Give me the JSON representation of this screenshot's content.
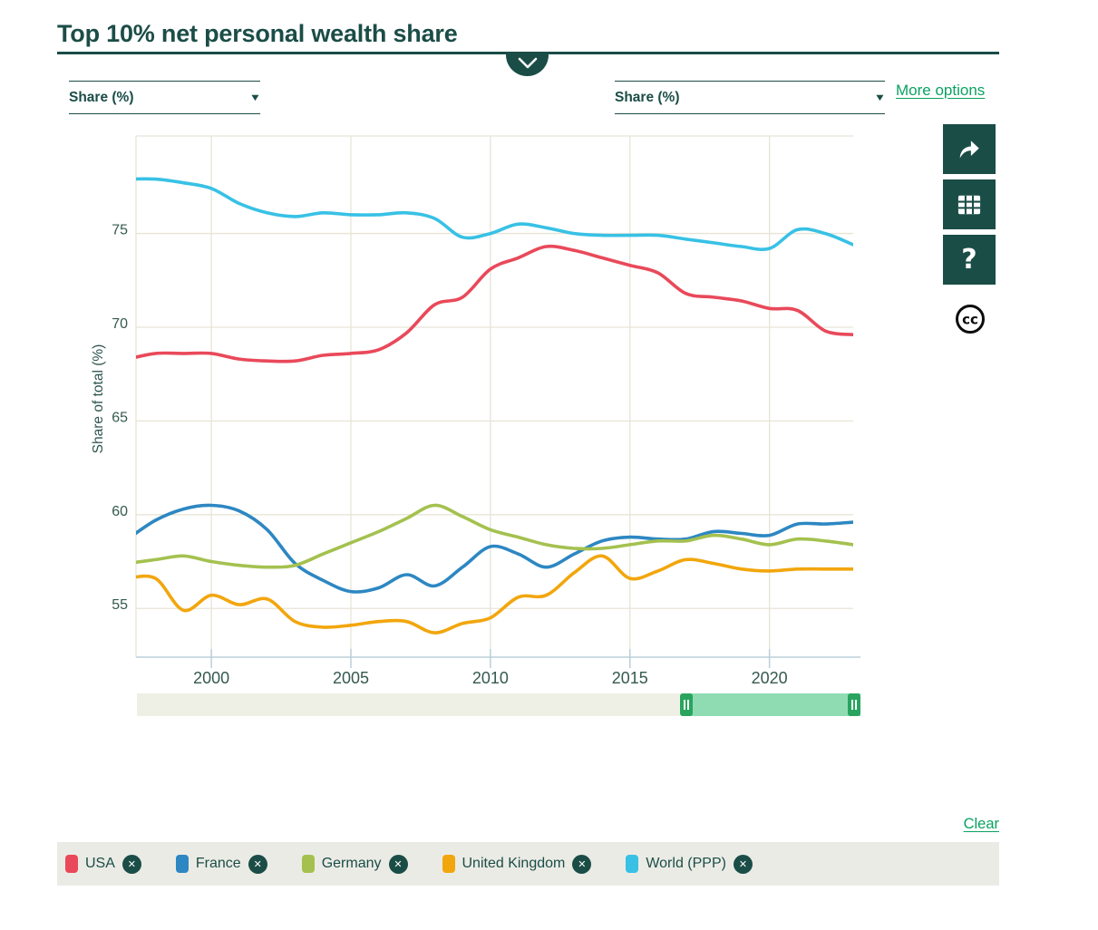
{
  "header": {
    "title": "Top 10% net personal wealth share"
  },
  "controls": {
    "left_unit_dropdown": {
      "value": "Share (%)"
    },
    "right_unit_dropdown": {
      "value": "Share (%)"
    },
    "more_options_label": "More options",
    "clear_label": "Clear"
  },
  "icons": {
    "dropdown_arrow": "▼",
    "remove": "✕",
    "help": "?",
    "creative_commons": "cc"
  },
  "colors": {
    "accent_teal": "#1b4d47",
    "link_green": "#0ba262",
    "grid": "#e7e4d6",
    "axis": "#bccfda",
    "tick_text": "#35594f",
    "legend_bg": "#ebebe5"
  },
  "slider": {
    "track_color": "#eff0e5",
    "selected_color": "#8fdcb3",
    "handle_color": "#29a45f"
  },
  "chart_data": {
    "type": "line",
    "title": "Top 10% net personal wealth share",
    "xlabel": "",
    "ylabel": "Share of total (%)",
    "grid": true,
    "legend_position": "bottom",
    "xlim": [
      1997.3,
      2023
    ],
    "ylim": [
      52.4,
      80.2
    ],
    "xticks": [
      2000,
      2005,
      2010,
      2015,
      2020
    ],
    "yticks": [
      55,
      60,
      65,
      70,
      75
    ],
    "x": [
      1997,
      1998,
      1999,
      2000,
      2001,
      2002,
      2003,
      2004,
      2005,
      2006,
      2007,
      2008,
      2009,
      2010,
      2011,
      2012,
      2013,
      2014,
      2015,
      2016,
      2017,
      2018,
      2019,
      2020,
      2021,
      2022,
      2023
    ],
    "series": [
      {
        "name": "USA",
        "color": "#e9495a",
        "values": [
          68.3,
          68.6,
          68.6,
          68.6,
          68.3,
          68.2,
          68.2,
          68.5,
          68.6,
          68.8,
          69.7,
          71.2,
          71.6,
          73.1,
          73.7,
          74.3,
          74.1,
          73.7,
          73.3,
          72.9,
          71.8,
          71.6,
          71.4,
          71.0,
          70.9,
          69.8,
          69.6
        ]
      },
      {
        "name": "France",
        "color": "#2d87c2",
        "values": [
          58.7,
          59.7,
          60.3,
          60.5,
          60.2,
          59.2,
          57.4,
          56.5,
          55.9,
          56.1,
          56.8,
          56.2,
          57.2,
          58.3,
          57.9,
          57.2,
          57.9,
          58.6,
          58.8,
          58.7,
          58.7,
          59.1,
          59.0,
          58.9,
          59.5,
          59.5,
          59.6
        ]
      },
      {
        "name": "Germany",
        "color": "#a4c14f",
        "values": [
          57.4,
          57.6,
          57.8,
          57.5,
          57.3,
          57.2,
          57.3,
          57.9,
          58.5,
          59.1,
          59.8,
          60.5,
          59.9,
          59.2,
          58.8,
          58.4,
          58.2,
          58.2,
          58.4,
          58.6,
          58.6,
          58.9,
          58.7,
          58.4,
          58.7,
          58.6,
          58.4
        ]
      },
      {
        "name": "United Kingdom",
        "color": "#f2a60d",
        "values": [
          56.6,
          56.6,
          54.9,
          55.7,
          55.2,
          55.5,
          54.3,
          54.0,
          54.1,
          54.3,
          54.3,
          53.7,
          54.2,
          54.5,
          55.6,
          55.7,
          56.9,
          57.8,
          56.6,
          57.0,
          57.6,
          57.4,
          57.1,
          57.0,
          57.1,
          57.1,
          57.1
        ]
      },
      {
        "name": "World (PPP)",
        "color": "#38c1e5",
        "values": [
          77.9,
          77.9,
          77.7,
          77.4,
          76.6,
          76.1,
          75.9,
          76.1,
          76.0,
          76.0,
          76.1,
          75.8,
          74.8,
          75.0,
          75.5,
          75.3,
          75.0,
          74.9,
          74.9,
          74.9,
          74.7,
          74.5,
          74.3,
          74.2,
          75.2,
          75.0,
          74.4
        ]
      }
    ]
  }
}
